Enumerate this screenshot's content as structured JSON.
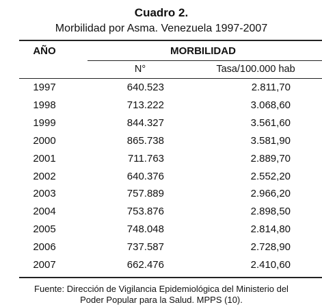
{
  "header": {
    "title": "Cuadro 2.",
    "subtitle": "Morbilidad por Asma. Venezuela 1997-2007"
  },
  "table": {
    "columns": [
      "AÑO",
      "MORBILIDAD"
    ],
    "subcolumns": [
      "N°",
      "Tasa/100.000 hab"
    ],
    "rows": [
      [
        "1997",
        "640.523",
        "2.811,70"
      ],
      [
        "1998",
        "713.222",
        "3.068,60"
      ],
      [
        "1999",
        "844.327",
        "3.561,60"
      ],
      [
        "2000",
        "865.738",
        "3.581,90"
      ],
      [
        "2001",
        "711.763",
        "2.889,70"
      ],
      [
        "2002",
        "640.376",
        "2.552,20"
      ],
      [
        "2003",
        "757.889",
        "2.966,20"
      ],
      [
        "2004",
        "753.876",
        "2.898,50"
      ],
      [
        "2005",
        "748.048",
        "2.814,80"
      ],
      [
        "2006",
        "737.587",
        "2.728,90"
      ],
      [
        "2007",
        "662.476",
        "2.410,60"
      ]
    ]
  },
  "footer": {
    "lines": [
      "Fuente: Dirección de Vigilancia Epidemiológica del Ministerio del",
      "Poder Popular para la Salud. MPPS (10)."
    ]
  }
}
